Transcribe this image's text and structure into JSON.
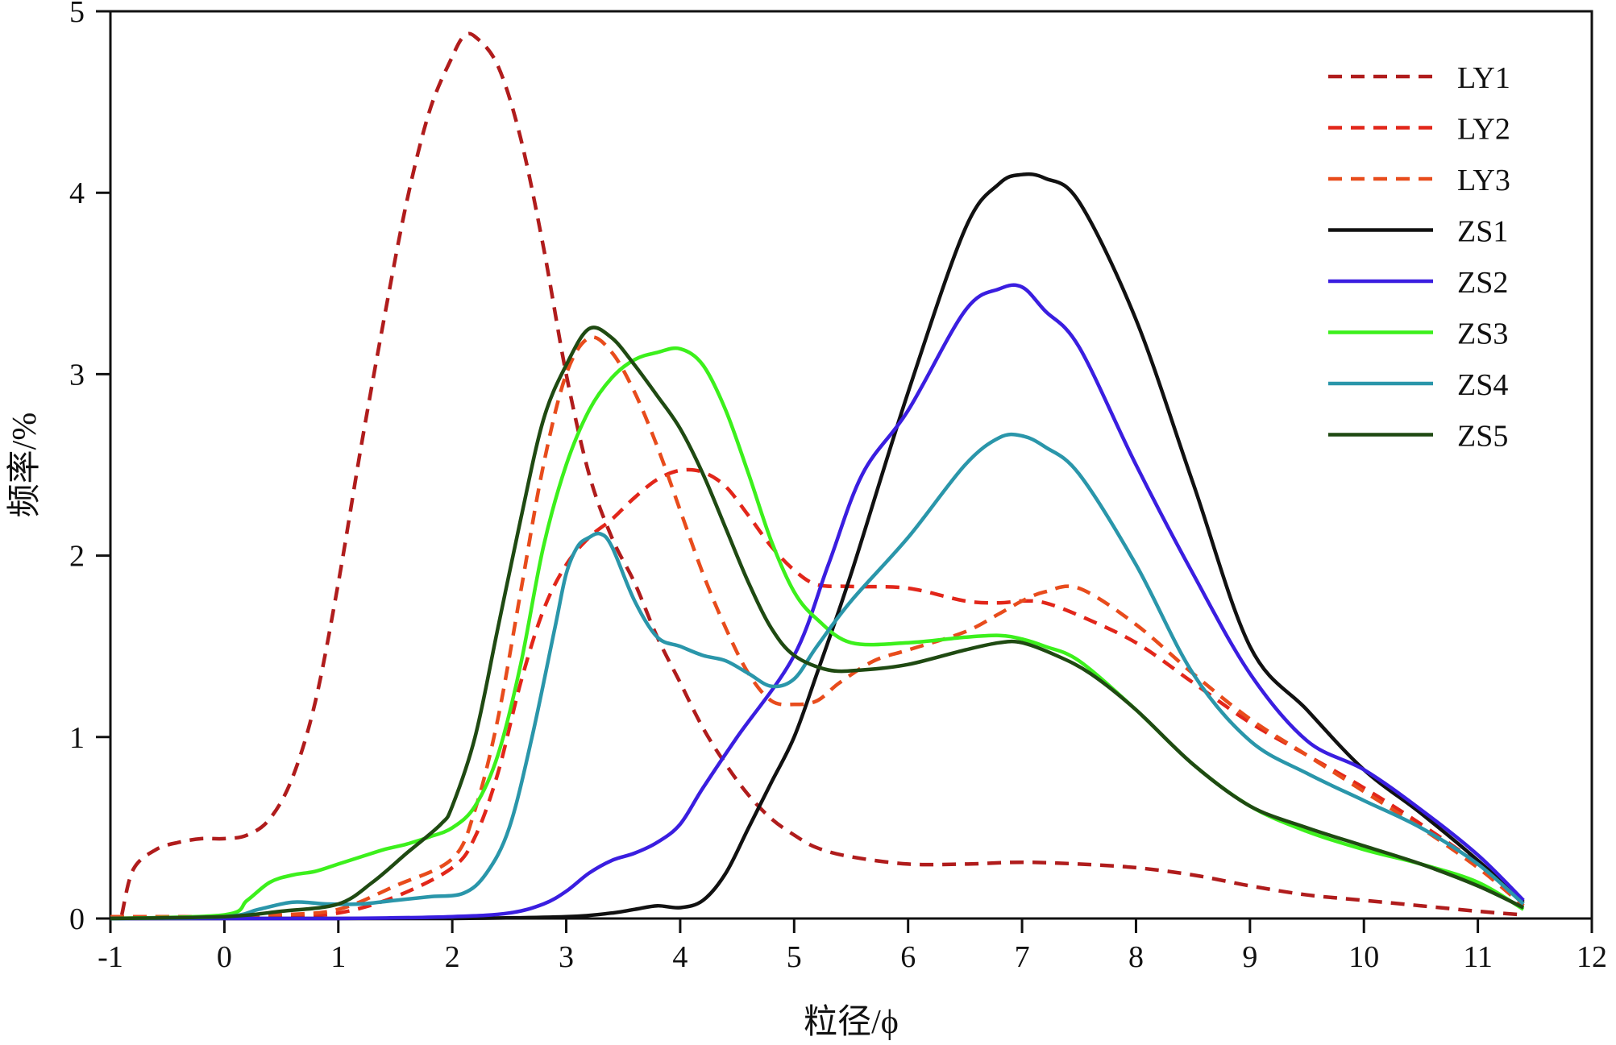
{
  "chart_data": {
    "type": "line",
    "title": "",
    "xlabel": "粒径/ϕ",
    "ylabel": "频率/%",
    "xlim": [
      -1,
      12
    ],
    "ylim": [
      0,
      5
    ],
    "xticks": [
      -1,
      0,
      1,
      2,
      3,
      4,
      5,
      6,
      7,
      8,
      9,
      10,
      11,
      12
    ],
    "xtick_labels": [
      "-1",
      "0",
      "1",
      "2",
      "3",
      "4",
      "5",
      "6",
      "7",
      "8",
      "9",
      "10",
      "11",
      "12"
    ],
    "yticks": [
      0,
      1,
      2,
      3,
      4,
      5
    ],
    "ytick_labels": [
      "0",
      "1",
      "2",
      "3",
      "4",
      "5"
    ],
    "grid": false,
    "legend_position": "top-right",
    "series": [
      {
        "name": "LY1",
        "color": "#b01c1c",
        "dashed": true,
        "x": [
          -0.9,
          -0.8,
          -0.6,
          -0.4,
          -0.2,
          0.0,
          0.2,
          0.4,
          0.6,
          0.8,
          1.0,
          1.2,
          1.4,
          1.6,
          1.8,
          2.0,
          2.1,
          2.2,
          2.4,
          2.6,
          2.8,
          3.0,
          3.2,
          3.4,
          3.6,
          3.8,
          4.0,
          4.2,
          4.4,
          4.6,
          4.8,
          5.0,
          5.2,
          5.5,
          6.0,
          6.5,
          7.0,
          7.5,
          8.0,
          8.5,
          9.0,
          9.5,
          10.0,
          10.5,
          11.0,
          11.4
        ],
        "y": [
          0.02,
          0.27,
          0.38,
          0.42,
          0.44,
          0.44,
          0.46,
          0.55,
          0.78,
          1.2,
          1.85,
          2.6,
          3.3,
          3.95,
          4.45,
          4.75,
          4.86,
          4.86,
          4.7,
          4.3,
          3.7,
          3.0,
          2.45,
          2.1,
          1.85,
          1.55,
          1.3,
          1.05,
          0.85,
          0.68,
          0.55,
          0.46,
          0.39,
          0.34,
          0.3,
          0.3,
          0.31,
          0.3,
          0.28,
          0.24,
          0.18,
          0.13,
          0.1,
          0.07,
          0.04,
          0.02
        ]
      },
      {
        "name": "LY2",
        "color": "#e2261a",
        "dashed": true,
        "x": [
          -1.0,
          0.0,
          0.5,
          1.0,
          1.5,
          2.0,
          2.2,
          2.4,
          2.6,
          2.8,
          3.0,
          3.2,
          3.4,
          3.6,
          3.8,
          4.0,
          4.2,
          4.4,
          4.6,
          4.8,
          5.0,
          5.2,
          5.5,
          6.0,
          6.5,
          6.8,
          7.0,
          7.2,
          7.5,
          8.0,
          8.5,
          9.0,
          9.5,
          10.0,
          10.5,
          11.0,
          11.4
        ],
        "y": [
          0.01,
          0.01,
          0.01,
          0.03,
          0.12,
          0.28,
          0.45,
          0.8,
          1.3,
          1.7,
          1.95,
          2.1,
          2.2,
          2.32,
          2.42,
          2.47,
          2.46,
          2.38,
          2.22,
          2.05,
          1.92,
          1.84,
          1.83,
          1.82,
          1.75,
          1.74,
          1.75,
          1.74,
          1.67,
          1.52,
          1.3,
          1.08,
          0.9,
          0.72,
          0.52,
          0.3,
          0.08
        ]
      },
      {
        "name": "LY3",
        "color": "#e84c1c",
        "dashed": true,
        "x": [
          -1.0,
          0.0,
          0.5,
          1.0,
          1.5,
          2.0,
          2.2,
          2.4,
          2.6,
          2.8,
          3.0,
          3.2,
          3.4,
          3.6,
          3.8,
          4.0,
          4.2,
          4.4,
          4.6,
          4.8,
          5.0,
          5.2,
          5.4,
          5.7,
          6.0,
          6.5,
          6.8,
          7.0,
          7.2,
          7.5,
          8.0,
          8.5,
          9.0,
          9.5,
          10.0,
          10.5,
          11.0,
          11.4
        ],
        "y": [
          0.01,
          0.01,
          0.02,
          0.05,
          0.18,
          0.33,
          0.6,
          1.1,
          1.8,
          2.5,
          3.0,
          3.2,
          3.12,
          2.9,
          2.6,
          2.25,
          1.9,
          1.6,
          1.35,
          1.2,
          1.18,
          1.2,
          1.3,
          1.42,
          1.48,
          1.58,
          1.68,
          1.75,
          1.8,
          1.82,
          1.62,
          1.35,
          1.1,
          0.9,
          0.7,
          0.5,
          0.28,
          0.07
        ]
      },
      {
        "name": "ZS1",
        "color": "#111111",
        "dashed": false,
        "x": [
          -1.0,
          0.0,
          1.0,
          2.0,
          3.0,
          3.4,
          3.6,
          3.8,
          4.0,
          4.2,
          4.4,
          4.6,
          4.8,
          5.0,
          5.2,
          5.5,
          6.0,
          6.5,
          6.8,
          7.0,
          7.2,
          7.5,
          8.0,
          8.5,
          9.0,
          9.5,
          10.0,
          10.5,
          11.0,
          11.4
        ],
        "y": [
          0.0,
          0.0,
          0.0,
          0.0,
          0.01,
          0.03,
          0.05,
          0.07,
          0.06,
          0.1,
          0.25,
          0.5,
          0.75,
          1.0,
          1.35,
          1.9,
          2.9,
          3.8,
          4.05,
          4.1,
          4.08,
          3.95,
          3.3,
          2.4,
          1.5,
          1.15,
          0.82,
          0.58,
          0.32,
          0.09
        ]
      },
      {
        "name": "ZS2",
        "color": "#3a1ee0",
        "dashed": false,
        "x": [
          -1.0,
          0.0,
          1.0,
          2.0,
          2.5,
          2.8,
          3.0,
          3.2,
          3.4,
          3.6,
          3.8,
          4.0,
          4.2,
          4.5,
          5.0,
          5.3,
          5.6,
          6.0,
          6.5,
          6.8,
          7.0,
          7.2,
          7.5,
          8.0,
          8.5,
          9.0,
          9.5,
          10.0,
          10.5,
          11.0,
          11.4
        ],
        "y": [
          0.0,
          0.0,
          0.0,
          0.01,
          0.03,
          0.08,
          0.15,
          0.25,
          0.32,
          0.36,
          0.42,
          0.52,
          0.72,
          1.0,
          1.45,
          1.95,
          2.45,
          2.8,
          3.35,
          3.47,
          3.48,
          3.35,
          3.15,
          2.5,
          1.9,
          1.35,
          0.98,
          0.82,
          0.6,
          0.35,
          0.1
        ]
      },
      {
        "name": "ZS3",
        "color": "#3cf01c",
        "dashed": false,
        "x": [
          -1.0,
          0.0,
          0.2,
          0.4,
          0.6,
          0.8,
          1.0,
          1.2,
          1.4,
          1.6,
          1.8,
          2.0,
          2.2,
          2.4,
          2.6,
          2.8,
          3.0,
          3.2,
          3.4,
          3.6,
          3.8,
          4.0,
          4.2,
          4.4,
          4.6,
          4.8,
          5.0,
          5.2,
          5.5,
          6.0,
          6.5,
          6.8,
          7.0,
          7.2,
          7.5,
          8.0,
          8.5,
          9.0,
          9.5,
          10.0,
          10.5,
          11.0,
          11.4
        ],
        "y": [
          0.0,
          0.02,
          0.1,
          0.2,
          0.24,
          0.26,
          0.3,
          0.34,
          0.38,
          0.41,
          0.45,
          0.5,
          0.62,
          0.9,
          1.4,
          2.05,
          2.5,
          2.8,
          2.98,
          3.08,
          3.12,
          3.14,
          3.05,
          2.8,
          2.45,
          2.08,
          1.8,
          1.65,
          1.52,
          1.52,
          1.55,
          1.56,
          1.54,
          1.5,
          1.42,
          1.15,
          0.85,
          0.62,
          0.48,
          0.38,
          0.3,
          0.2,
          0.05
        ]
      },
      {
        "name": "ZS4",
        "color": "#2a96aa",
        "dashed": false,
        "x": [
          -1.0,
          0.0,
          0.3,
          0.6,
          0.9,
          1.2,
          1.5,
          1.8,
          2.1,
          2.3,
          2.5,
          2.7,
          2.9,
          3.0,
          3.1,
          3.2,
          3.3,
          3.4,
          3.6,
          3.8,
          4.0,
          4.2,
          4.4,
          4.6,
          4.8,
          5.0,
          5.2,
          5.5,
          6.0,
          6.5,
          6.8,
          7.0,
          7.2,
          7.5,
          8.0,
          8.5,
          9.0,
          9.5,
          10.0,
          10.5,
          11.0,
          11.4
        ],
        "y": [
          0.0,
          0.01,
          0.05,
          0.09,
          0.08,
          0.08,
          0.1,
          0.12,
          0.14,
          0.25,
          0.5,
          1.0,
          1.6,
          1.9,
          2.05,
          2.1,
          2.12,
          2.05,
          1.75,
          1.55,
          1.5,
          1.45,
          1.42,
          1.35,
          1.28,
          1.32,
          1.5,
          1.75,
          2.1,
          2.5,
          2.65,
          2.66,
          2.6,
          2.45,
          1.95,
          1.35,
          0.98,
          0.8,
          0.65,
          0.5,
          0.3,
          0.08
        ]
      },
      {
        "name": "ZS5",
        "color": "#1f4a12",
        "dashed": false,
        "x": [
          -1.0,
          0.0,
          0.5,
          1.0,
          1.3,
          1.6,
          1.9,
          2.0,
          2.2,
          2.4,
          2.6,
          2.8,
          3.0,
          3.2,
          3.4,
          3.6,
          3.8,
          4.0,
          4.2,
          4.4,
          4.6,
          4.8,
          5.0,
          5.3,
          5.6,
          6.0,
          6.5,
          6.8,
          7.0,
          7.3,
          7.6,
          8.0,
          8.5,
          9.0,
          9.5,
          10.0,
          10.5,
          11.0,
          11.4
        ],
        "y": [
          0.0,
          0.01,
          0.04,
          0.08,
          0.2,
          0.36,
          0.52,
          0.62,
          1.0,
          1.6,
          2.2,
          2.75,
          3.05,
          3.25,
          3.2,
          3.05,
          2.88,
          2.7,
          2.45,
          2.15,
          1.85,
          1.6,
          1.45,
          1.37,
          1.37,
          1.4,
          1.48,
          1.52,
          1.52,
          1.45,
          1.35,
          1.15,
          0.85,
          0.62,
          0.5,
          0.4,
          0.3,
          0.18,
          0.06
        ]
      }
    ]
  }
}
